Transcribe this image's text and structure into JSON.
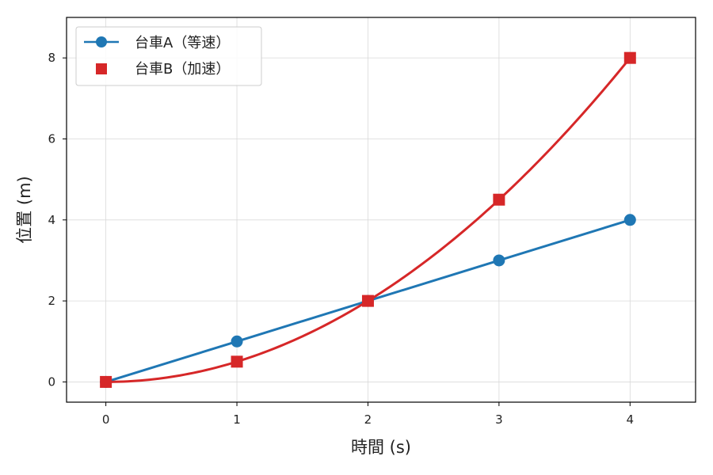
{
  "chart_data": {
    "type": "line",
    "xlabel": "時間 (s)",
    "ylabel": "位置 (m)",
    "xlim": [
      -0.3,
      4.5
    ],
    "ylim": [
      -0.5,
      9.0
    ],
    "xticks": [
      "0",
      "1",
      "2",
      "3",
      "4"
    ],
    "yticks": [
      "0",
      "2",
      "4",
      "6",
      "8"
    ],
    "grid": true,
    "legend_position": "top-left",
    "series": [
      {
        "name": "台車A（等速）",
        "marker": "circle",
        "color": "#1f77b4",
        "x": [
          0,
          1,
          2,
          3,
          4
        ],
        "y": [
          0,
          1,
          2,
          3,
          4
        ],
        "curve": "linear"
      },
      {
        "name": "台車B（加速）",
        "marker": "square",
        "color": "#d62728",
        "x": [
          0,
          1,
          2,
          3,
          4
        ],
        "y": [
          0,
          0.5,
          2,
          4.5,
          8
        ],
        "curve": "quadratic"
      }
    ]
  }
}
